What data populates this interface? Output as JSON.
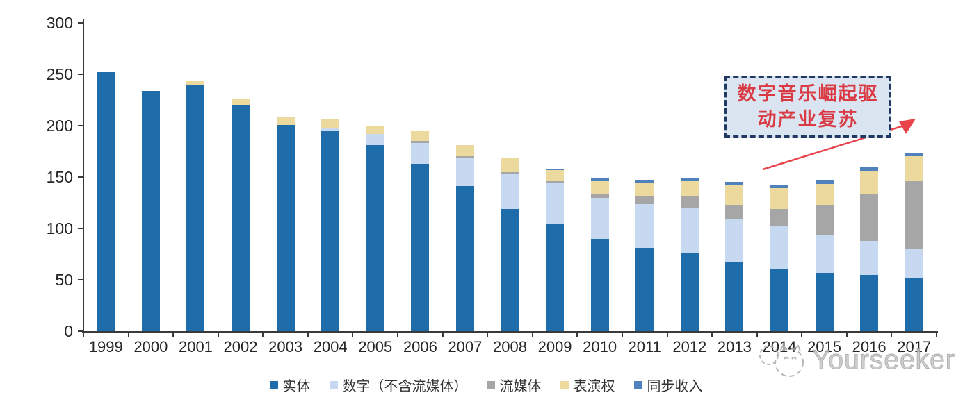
{
  "chart_data": {
    "type": "bar",
    "stacked": true,
    "categories": [
      "1999",
      "2000",
      "2001",
      "2002",
      "2003",
      "2004",
      "2005",
      "2006",
      "2007",
      "2008",
      "2009",
      "2010",
      "2011",
      "2012",
      "2013",
      "2014",
      "2015",
      "2016",
      "2017"
    ],
    "series": [
      {
        "name": "实体",
        "color": "#1F6CAB",
        "values": [
          252,
          234,
          239,
          220,
          201,
          195,
          181,
          163,
          141,
          119,
          104,
          89,
          81,
          76,
          67,
          60,
          57,
          55,
          52
        ]
      },
      {
        "name": "数字（不含流媒体）",
        "color": "#C6D9F0",
        "values": [
          0,
          0,
          0,
          0,
          0,
          3,
          11,
          20,
          27,
          34,
          40,
          41,
          43,
          44,
          42,
          42,
          36,
          33,
          28
        ]
      },
      {
        "name": "流媒体",
        "color": "#A6A6A6",
        "values": [
          0,
          0,
          0,
          0,
          0,
          0,
          0,
          2,
          2,
          2,
          2,
          3,
          7,
          11,
          14,
          17,
          29,
          46,
          66
        ]
      },
      {
        "name": "表演权",
        "color": "#EBD99E",
        "values": [
          0,
          0,
          5,
          6,
          7,
          9,
          8,
          10,
          11,
          13,
          11,
          13,
          13,
          15,
          19,
          20,
          21,
          22,
          24
        ]
      },
      {
        "name": "同步收入",
        "color": "#4F81BD",
        "values": [
          0,
          0,
          0,
          0,
          0,
          0,
          0,
          0,
          0,
          1,
          1,
          3,
          3,
          3,
          3,
          3,
          4,
          4,
          4
        ]
      }
    ],
    "ylim": [
      0,
      300
    ],
    "yticks": [
      0,
      50,
      100,
      150,
      200,
      250,
      300
    ],
    "xlabel": "",
    "ylabel": "",
    "title": "",
    "grid": false,
    "legend_position": "bottom"
  },
  "annotation": {
    "lines": [
      "数字音乐崛起驱",
      "动产业复苏"
    ],
    "text_color": "#D93A44",
    "box_fill": "#DBE5F1",
    "box_border": "#1F3864",
    "arrow_color": "#E8434B"
  },
  "watermark": {
    "text": "Yourseeker",
    "color": "#ADADAD"
  },
  "colors": {
    "axis": "#3A3A3A",
    "tick_text": "#262626"
  }
}
